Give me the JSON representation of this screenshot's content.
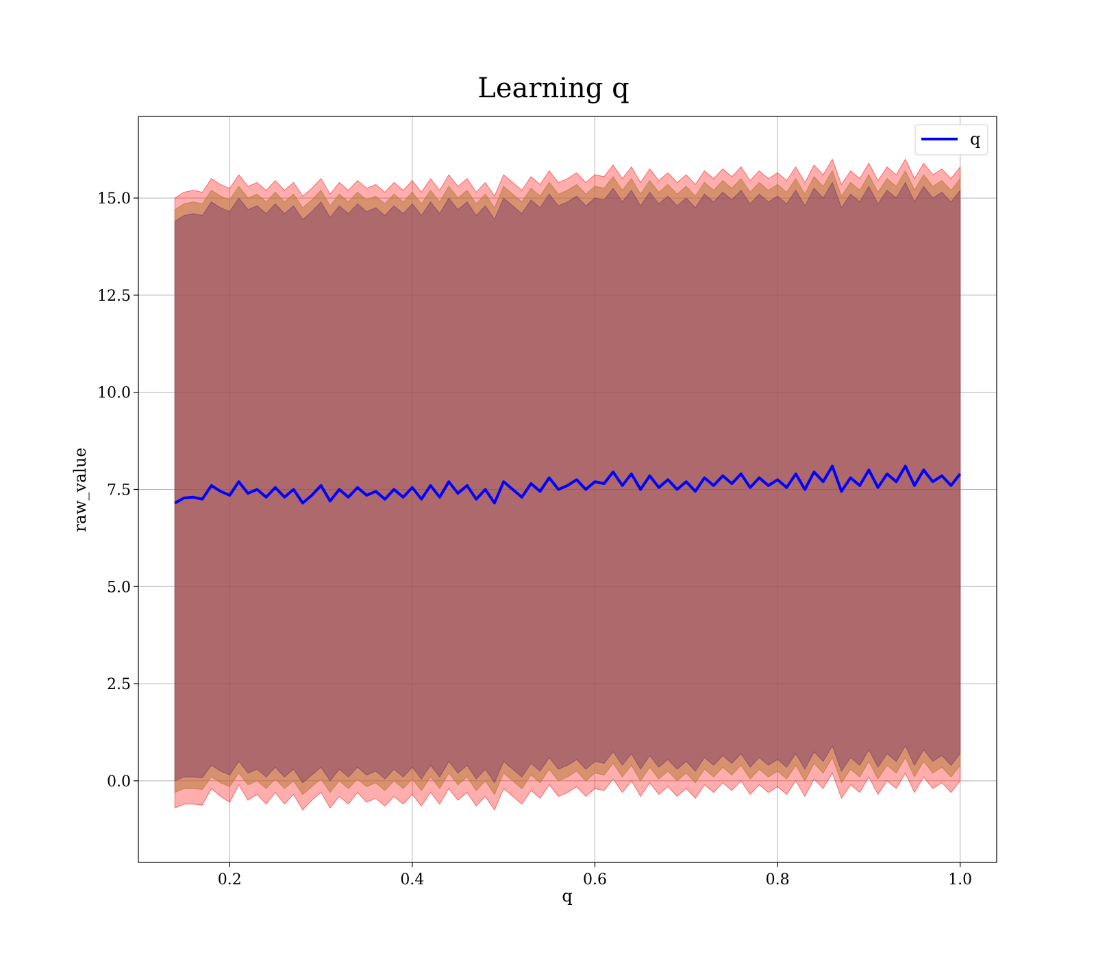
{
  "chart_data": {
    "type": "line",
    "title": "Learning q",
    "xlabel": "q",
    "ylabel": "raw_value",
    "xlim": [
      0.1,
      1.04
    ],
    "ylim": [
      -2.1,
      17.1
    ],
    "xticks": [
      "0.2",
      "0.4",
      "0.6",
      "0.8",
      "1.0"
    ],
    "yticks": [
      "0.0",
      "2.5",
      "5.0",
      "7.5",
      "10.0",
      "12.5",
      "15.0"
    ],
    "grid": true,
    "legend": {
      "position": "top-right",
      "entries": [
        "q"
      ]
    },
    "series": [
      {
        "name": "q",
        "color": "#0000ff",
        "x": [
          0.14,
          0.15,
          0.16,
          0.17,
          0.18,
          0.19,
          0.2,
          0.21,
          0.22,
          0.23,
          0.24,
          0.25,
          0.26,
          0.27,
          0.28,
          0.29,
          0.3,
          0.31,
          0.32,
          0.33,
          0.34,
          0.35,
          0.36,
          0.37,
          0.38,
          0.39,
          0.4,
          0.41,
          0.42,
          0.43,
          0.44,
          0.45,
          0.46,
          0.47,
          0.48,
          0.49,
          0.5,
          0.51,
          0.52,
          0.53,
          0.54,
          0.55,
          0.56,
          0.57,
          0.58,
          0.59,
          0.6,
          0.61,
          0.62,
          0.63,
          0.64,
          0.65,
          0.66,
          0.67,
          0.68,
          0.69,
          0.7,
          0.71,
          0.72,
          0.73,
          0.74,
          0.75,
          0.76,
          0.77,
          0.78,
          0.79,
          0.8,
          0.81,
          0.82,
          0.83,
          0.84,
          0.85,
          0.86,
          0.87,
          0.88,
          0.89,
          0.9,
          0.91,
          0.92,
          0.93,
          0.94,
          0.95,
          0.96,
          0.97,
          0.98,
          0.99,
          1.0
        ],
        "values": [
          7.15,
          7.28,
          7.3,
          7.25,
          7.6,
          7.45,
          7.35,
          7.7,
          7.4,
          7.5,
          7.3,
          7.55,
          7.3,
          7.5,
          7.15,
          7.35,
          7.6,
          7.2,
          7.5,
          7.3,
          7.55,
          7.35,
          7.45,
          7.25,
          7.5,
          7.3,
          7.55,
          7.25,
          7.6,
          7.3,
          7.7,
          7.4,
          7.6,
          7.25,
          7.5,
          7.15,
          7.7,
          7.5,
          7.3,
          7.65,
          7.45,
          7.8,
          7.5,
          7.6,
          7.75,
          7.5,
          7.7,
          7.65,
          7.95,
          7.6,
          7.9,
          7.5,
          7.85,
          7.55,
          7.75,
          7.5,
          7.7,
          7.45,
          7.8,
          7.6,
          7.85,
          7.65,
          7.9,
          7.55,
          7.8,
          7.6,
          7.75,
          7.55,
          7.9,
          7.5,
          7.95,
          7.7,
          8.1,
          7.45,
          7.8,
          7.6,
          8.0,
          7.55,
          7.9,
          7.7,
          8.1,
          7.6,
          8.0,
          7.7,
          7.85,
          7.6,
          7.9
        ]
      }
    ],
    "bands": [
      {
        "color": "#ff0000",
        "opacity": 0.32,
        "lower": [
          -0.7,
          -0.6,
          -0.6,
          -0.62,
          -0.2,
          -0.4,
          -0.55,
          -0.1,
          -0.5,
          -0.35,
          -0.6,
          -0.3,
          -0.6,
          -0.35,
          -0.75,
          -0.5,
          -0.3,
          -0.7,
          -0.4,
          -0.6,
          -0.3,
          -0.55,
          -0.45,
          -0.65,
          -0.4,
          -0.6,
          -0.35,
          -0.65,
          -0.3,
          -0.6,
          -0.2,
          -0.5,
          -0.3,
          -0.65,
          -0.4,
          -0.75,
          -0.2,
          -0.4,
          -0.6,
          -0.25,
          -0.45,
          -0.1,
          -0.4,
          -0.3,
          -0.15,
          -0.4,
          -0.2,
          -0.25,
          0.05,
          -0.3,
          0.0,
          -0.4,
          -0.05,
          -0.35,
          -0.15,
          -0.4,
          -0.2,
          -0.45,
          -0.1,
          -0.3,
          -0.05,
          -0.25,
          0.0,
          -0.35,
          -0.1,
          -0.3,
          -0.15,
          -0.35,
          0.0,
          -0.4,
          0.05,
          -0.2,
          0.2,
          -0.45,
          -0.1,
          -0.3,
          0.1,
          -0.35,
          0.0,
          -0.2,
          0.2,
          -0.3,
          0.1,
          -0.2,
          -0.05,
          -0.3,
          -0.0
        ],
        "upper": [
          15.0,
          15.15,
          15.2,
          15.15,
          15.5,
          15.35,
          15.25,
          15.6,
          15.3,
          15.4,
          15.2,
          15.45,
          15.2,
          15.4,
          15.05,
          15.25,
          15.5,
          15.1,
          15.4,
          15.2,
          15.45,
          15.25,
          15.35,
          15.15,
          15.4,
          15.2,
          15.45,
          15.15,
          15.5,
          15.2,
          15.6,
          15.3,
          15.5,
          15.15,
          15.4,
          15.05,
          15.6,
          15.4,
          15.2,
          15.55,
          15.35,
          15.7,
          15.4,
          15.5,
          15.65,
          15.4,
          15.6,
          15.55,
          15.85,
          15.5,
          15.8,
          15.4,
          15.75,
          15.45,
          15.65,
          15.4,
          15.6,
          15.35,
          15.7,
          15.5,
          15.75,
          15.55,
          15.8,
          15.45,
          15.7,
          15.5,
          15.65,
          15.45,
          15.8,
          15.4,
          15.85,
          15.6,
          16.0,
          15.35,
          15.7,
          15.5,
          15.9,
          15.45,
          15.8,
          15.6,
          16.0,
          15.5,
          15.9,
          15.6,
          15.75,
          15.5,
          15.8
        ]
      },
      {
        "color": "#b87a3a",
        "opacity": 0.55,
        "lower": [
          -0.3,
          -0.2,
          -0.2,
          -0.22,
          0.1,
          -0.05,
          -0.15,
          0.2,
          -0.1,
          0.0,
          -0.2,
          0.05,
          -0.2,
          0.0,
          -0.35,
          -0.15,
          0.05,
          -0.3,
          0.0,
          -0.2,
          0.05,
          -0.15,
          -0.05,
          -0.25,
          0.0,
          -0.2,
          0.05,
          -0.25,
          0.1,
          -0.2,
          0.2,
          -0.1,
          0.1,
          -0.25,
          0.0,
          -0.35,
          0.2,
          0.0,
          -0.2,
          0.15,
          -0.05,
          0.3,
          0.0,
          0.1,
          0.25,
          0.0,
          0.2,
          0.15,
          0.45,
          0.1,
          0.4,
          0.0,
          0.35,
          0.05,
          0.25,
          0.0,
          0.2,
          -0.05,
          0.3,
          0.1,
          0.35,
          0.15,
          0.4,
          0.05,
          0.3,
          0.1,
          0.25,
          0.05,
          0.4,
          0.0,
          0.45,
          0.2,
          0.6,
          -0.05,
          0.3,
          0.1,
          0.5,
          0.05,
          0.4,
          0.2,
          0.6,
          0.1,
          0.5,
          0.2,
          0.35,
          0.1,
          0.4
        ],
        "upper": [
          14.7,
          14.85,
          14.9,
          14.85,
          15.2,
          15.05,
          14.95,
          15.3,
          15.0,
          15.1,
          14.9,
          15.15,
          14.9,
          15.1,
          14.75,
          14.95,
          15.2,
          14.8,
          15.1,
          14.9,
          15.15,
          14.95,
          15.05,
          14.85,
          15.1,
          14.9,
          15.15,
          14.85,
          15.2,
          14.9,
          15.3,
          15.0,
          15.2,
          14.85,
          15.1,
          14.75,
          15.3,
          15.1,
          14.9,
          15.25,
          15.05,
          15.4,
          15.1,
          15.2,
          15.35,
          15.1,
          15.3,
          15.25,
          15.55,
          15.2,
          15.5,
          15.1,
          15.45,
          15.15,
          15.35,
          15.1,
          15.3,
          15.05,
          15.4,
          15.2,
          15.45,
          15.25,
          15.5,
          15.15,
          15.4,
          15.2,
          15.35,
          15.15,
          15.5,
          15.1,
          15.55,
          15.3,
          15.7,
          15.05,
          15.4,
          15.2,
          15.6,
          15.15,
          15.5,
          15.3,
          15.7,
          15.2,
          15.6,
          15.3,
          15.45,
          15.2,
          15.5
        ]
      },
      {
        "color": "#7a3a6a",
        "opacity": 0.45,
        "lower": [
          0.0,
          0.1,
          0.1,
          0.08,
          0.4,
          0.25,
          0.15,
          0.5,
          0.2,
          0.3,
          0.1,
          0.35,
          0.1,
          0.3,
          -0.05,
          0.15,
          0.35,
          0.0,
          0.3,
          0.1,
          0.35,
          0.15,
          0.25,
          0.05,
          0.3,
          0.1,
          0.35,
          0.05,
          0.4,
          0.1,
          0.5,
          0.2,
          0.4,
          0.05,
          0.3,
          -0.05,
          0.5,
          0.3,
          0.1,
          0.45,
          0.25,
          0.6,
          0.3,
          0.4,
          0.55,
          0.3,
          0.5,
          0.45,
          0.75,
          0.4,
          0.7,
          0.3,
          0.65,
          0.35,
          0.55,
          0.3,
          0.5,
          0.25,
          0.6,
          0.4,
          0.65,
          0.45,
          0.7,
          0.35,
          0.6,
          0.4,
          0.55,
          0.35,
          0.7,
          0.3,
          0.75,
          0.5,
          0.9,
          0.25,
          0.6,
          0.4,
          0.8,
          0.35,
          0.7,
          0.5,
          0.9,
          0.4,
          0.8,
          0.5,
          0.65,
          0.4,
          0.7
        ],
        "upper": [
          14.4,
          14.55,
          14.6,
          14.55,
          14.9,
          14.75,
          14.65,
          15.0,
          14.7,
          14.8,
          14.6,
          14.85,
          14.6,
          14.8,
          14.45,
          14.65,
          14.9,
          14.5,
          14.8,
          14.6,
          14.85,
          14.65,
          14.75,
          14.55,
          14.8,
          14.6,
          14.85,
          14.55,
          14.9,
          14.6,
          15.0,
          14.7,
          14.9,
          14.55,
          14.8,
          14.45,
          15.0,
          14.8,
          14.6,
          14.95,
          14.75,
          15.1,
          14.8,
          14.9,
          15.05,
          14.8,
          15.0,
          14.95,
          15.25,
          14.9,
          15.2,
          14.8,
          15.15,
          14.85,
          15.05,
          14.8,
          15.0,
          14.75,
          15.1,
          14.9,
          15.15,
          14.95,
          15.2,
          14.85,
          15.1,
          14.9,
          15.05,
          14.85,
          15.2,
          14.8,
          15.25,
          15.0,
          15.4,
          14.75,
          15.1,
          14.9,
          15.3,
          14.85,
          15.2,
          15.0,
          15.4,
          14.9,
          15.3,
          15.0,
          15.15,
          14.9,
          15.2
        ]
      }
    ]
  }
}
